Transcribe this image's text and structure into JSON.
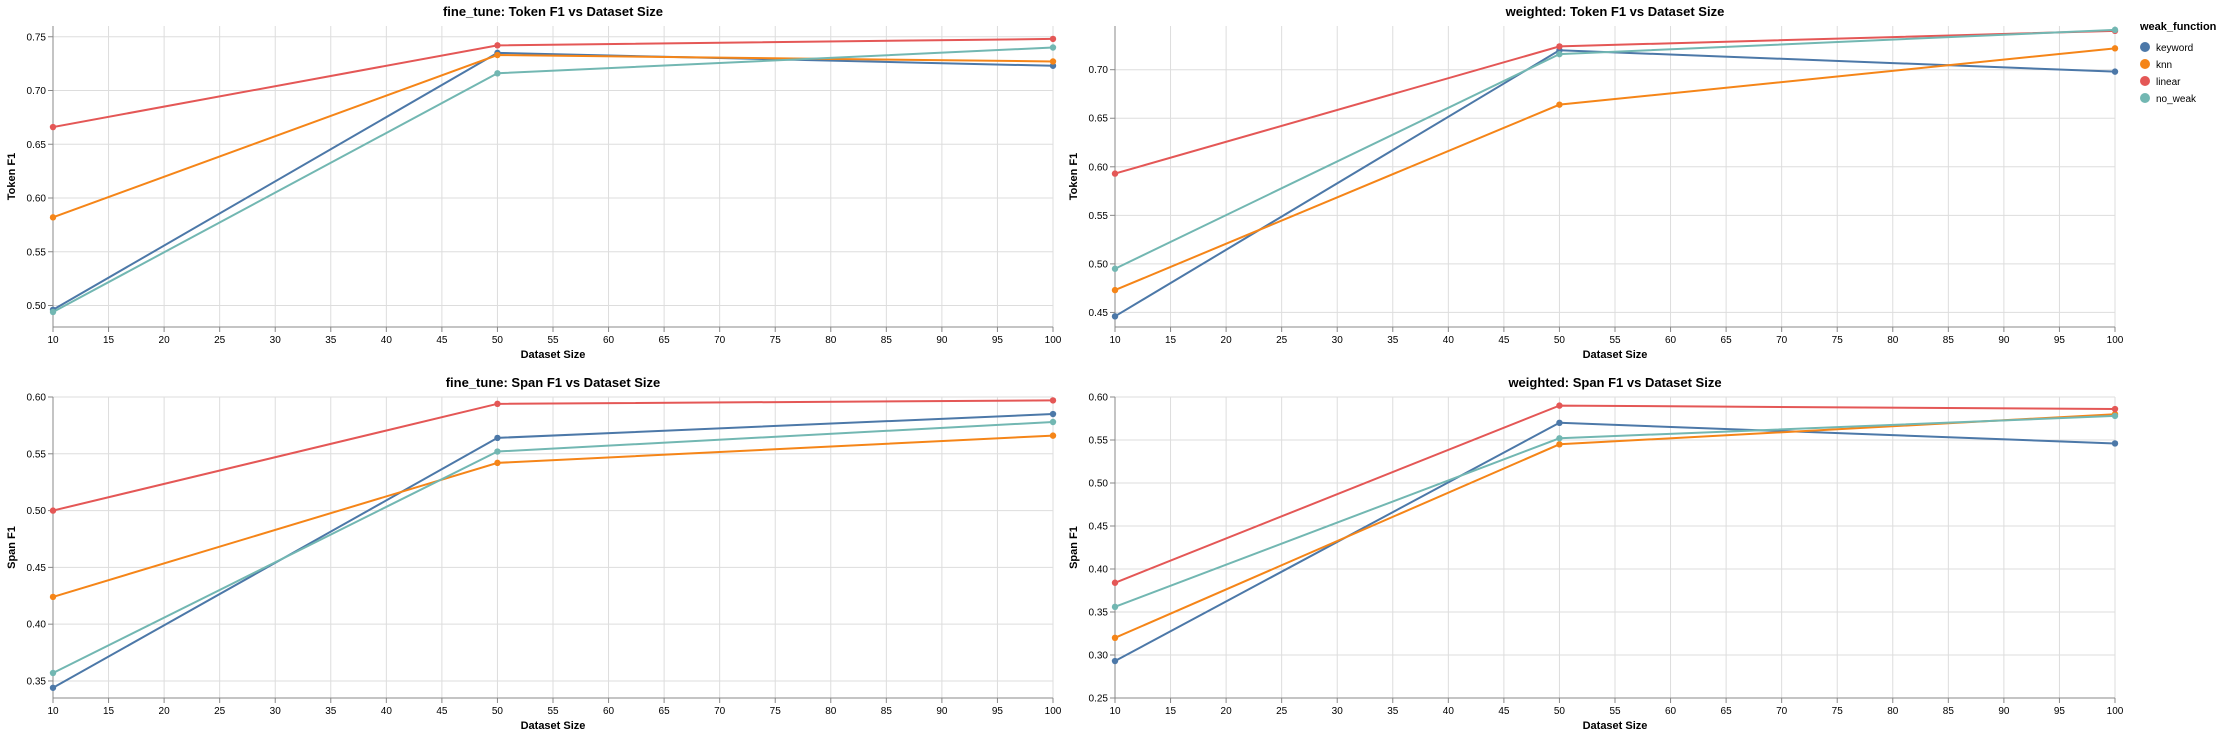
{
  "chart_data": [
    {
      "type": "line",
      "title": "fine_tune: Token F1 vs Dataset Size",
      "xlabel": "Dataset Size",
      "ylabel": "Token F1",
      "xlim": [
        10,
        100
      ],
      "ylim": [
        0.48,
        0.76
      ],
      "xticks": [
        10,
        15,
        20,
        25,
        30,
        35,
        40,
        45,
        50,
        55,
        60,
        65,
        70,
        75,
        80,
        85,
        90,
        95,
        100
      ],
      "yticks": [
        0.5,
        0.55,
        0.6,
        0.65,
        0.7,
        0.75
      ],
      "ytick_labels": [
        "0.50",
        "0.55",
        "0.60",
        "0.65",
        "0.70",
        "0.75"
      ],
      "grid": true,
      "x": [
        10,
        50,
        100
      ],
      "series": [
        {
          "name": "keyword",
          "color": "#4c78a8",
          "values": [
            0.496,
            0.735,
            0.723
          ]
        },
        {
          "name": "knn",
          "color": "#f58518",
          "values": [
            0.582,
            0.733,
            0.727
          ]
        },
        {
          "name": "linear",
          "color": "#e45756",
          "values": [
            0.666,
            0.742,
            0.748
          ]
        },
        {
          "name": "no_weak",
          "color": "#72b7b2",
          "values": [
            0.494,
            0.716,
            0.74
          ]
        }
      ]
    },
    {
      "type": "line",
      "title": "weighted: Token F1 vs Dataset Size",
      "xlabel": "Dataset Size",
      "ylabel": "Token F1",
      "xlim": [
        10,
        100
      ],
      "ylim": [
        0.435,
        0.745
      ],
      "xticks": [
        10,
        15,
        20,
        25,
        30,
        35,
        40,
        45,
        50,
        55,
        60,
        65,
        70,
        75,
        80,
        85,
        90,
        95,
        100
      ],
      "yticks": [
        0.45,
        0.5,
        0.55,
        0.6,
        0.65,
        0.7
      ],
      "ytick_labels": [
        "0.45",
        "0.50",
        "0.55",
        "0.60",
        "0.65",
        "0.70"
      ],
      "grid": true,
      "legend": "top-right",
      "x": [
        10,
        50,
        100
      ],
      "series": [
        {
          "name": "keyword",
          "color": "#4c78a8",
          "values": [
            0.446,
            0.72,
            0.698
          ]
        },
        {
          "name": "knn",
          "color": "#f58518",
          "values": [
            0.473,
            0.664,
            0.722
          ]
        },
        {
          "name": "linear",
          "color": "#e45756",
          "values": [
            0.593,
            0.724,
            0.74
          ]
        },
        {
          "name": "no_weak",
          "color": "#72b7b2",
          "values": [
            0.495,
            0.716,
            0.741
          ]
        }
      ]
    },
    {
      "type": "line",
      "title": "fine_tune: Span F1 vs Dataset Size",
      "xlabel": "Dataset Size",
      "ylabel": "Span F1",
      "xlim": [
        10,
        100
      ],
      "ylim": [
        0.335,
        0.6
      ],
      "xticks": [
        10,
        15,
        20,
        25,
        30,
        35,
        40,
        45,
        50,
        55,
        60,
        65,
        70,
        75,
        80,
        85,
        90,
        95,
        100
      ],
      "yticks": [
        0.35,
        0.4,
        0.45,
        0.5,
        0.55,
        0.6
      ],
      "ytick_labels": [
        "0.35",
        "0.40",
        "0.45",
        "0.50",
        "0.55",
        "0.60"
      ],
      "grid": true,
      "x": [
        10,
        50,
        100
      ],
      "series": [
        {
          "name": "keyword",
          "color": "#4c78a8",
          "values": [
            0.344,
            0.564,
            0.585
          ]
        },
        {
          "name": "knn",
          "color": "#f58518",
          "values": [
            0.424,
            0.542,
            0.566
          ]
        },
        {
          "name": "linear",
          "color": "#e45756",
          "values": [
            0.5,
            0.594,
            0.597
          ]
        },
        {
          "name": "no_weak",
          "color": "#72b7b2",
          "values": [
            0.357,
            0.552,
            0.578
          ]
        }
      ]
    },
    {
      "type": "line",
      "title": "weighted: Span F1 vs Dataset Size",
      "xlabel": "Dataset Size",
      "ylabel": "Span F1",
      "xlim": [
        10,
        100
      ],
      "ylim": [
        0.25,
        0.6
      ],
      "xticks": [
        10,
        15,
        20,
        25,
        30,
        35,
        40,
        45,
        50,
        55,
        60,
        65,
        70,
        75,
        80,
        85,
        90,
        95,
        100
      ],
      "yticks": [
        0.25,
        0.3,
        0.35,
        0.4,
        0.45,
        0.5,
        0.55,
        0.6
      ],
      "ytick_labels": [
        "0.25",
        "0.30",
        "0.35",
        "0.40",
        "0.45",
        "0.50",
        "0.55",
        "0.60"
      ],
      "grid": true,
      "x": [
        10,
        50,
        100
      ],
      "series": [
        {
          "name": "keyword",
          "color": "#4c78a8",
          "values": [
            0.293,
            0.57,
            0.546
          ]
        },
        {
          "name": "knn",
          "color": "#f58518",
          "values": [
            0.32,
            0.545,
            0.58
          ]
        },
        {
          "name": "linear",
          "color": "#e45756",
          "values": [
            0.384,
            0.59,
            0.586
          ]
        },
        {
          "name": "no_weak",
          "color": "#72b7b2",
          "values": [
            0.356,
            0.552,
            0.578
          ]
        }
      ]
    }
  ],
  "legend": {
    "title": "weak_function",
    "items": [
      {
        "label": "keyword",
        "color": "#4c78a8"
      },
      {
        "label": "knn",
        "color": "#f58518"
      },
      {
        "label": "linear",
        "color": "#e45756"
      },
      {
        "label": "no_weak",
        "color": "#72b7b2"
      }
    ]
  }
}
